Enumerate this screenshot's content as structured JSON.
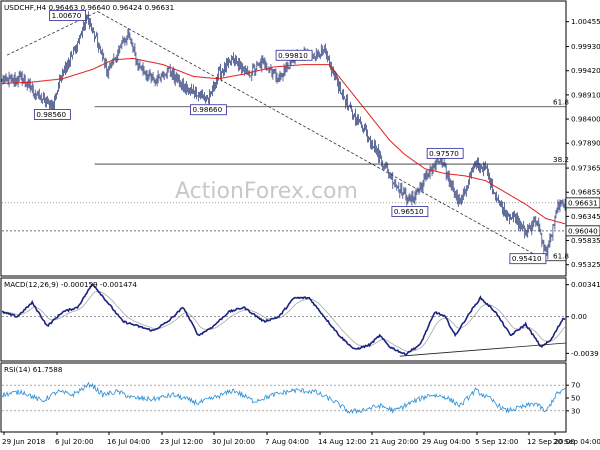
{
  "chart_data": {
    "type": "candlestick",
    "symbol_header": "USDCHF,H4  0.96463 0.96640 0.96424 0.96631",
    "watermark": "ActionForex.com",
    "x_labels": [
      "29 Jun 2018",
      "6 Jul 20:00",
      "16 Jul 04:00",
      "23 Jul 12:00",
      "30 Jul 20:00",
      "7 Aug 04:00",
      "14 Aug 12:00",
      "21 Aug 20:00",
      "29 Aug 04:00",
      "5 Sep 12:00",
      "12 Sep 20:00",
      "20 Sep 04:00"
    ],
    "main": {
      "y_min": 0.9515,
      "y_max": 1.0085,
      "y_ticks": [
        "1.00455",
        "0.99930",
        "0.99420",
        "0.98910",
        "0.98400",
        "0.97890",
        "0.97365",
        "0.96855",
        "0.96345",
        "0.95835",
        "0.95325"
      ],
      "current_price": 0.96631,
      "current_label": "0.96631",
      "level_price": 0.9604,
      "level_label": "0.96040",
      "fib_levels": [
        {
          "label": "61.8",
          "price": 0.9866
        },
        {
          "label": "38.2",
          "price": 0.9745
        },
        {
          "label": "61.8",
          "price": 0.9541
        }
      ],
      "annotations": [
        {
          "label": "1.00670",
          "idx": 85,
          "price": 1.0067
        },
        {
          "label": "0.98560",
          "idx": 50,
          "price": 0.9856
        },
        {
          "label": "0.98660",
          "idx": 205,
          "price": 0.9866
        },
        {
          "label": "0.99810",
          "idx": 290,
          "price": 0.9981
        },
        {
          "label": "0.97570",
          "idx": 440,
          "price": 0.9757
        },
        {
          "label": "0.96510",
          "idx": 405,
          "price": 0.9651
        },
        {
          "label": "0.95410",
          "idx": 542,
          "price": 0.9541
        }
      ],
      "close_anchors": [
        [
          0,
          0.992
        ],
        [
          20,
          0.9925
        ],
        [
          35,
          0.989
        ],
        [
          50,
          0.9865
        ],
        [
          60,
          0.994
        ],
        [
          70,
          0.9975
        ],
        [
          85,
          1.0055
        ],
        [
          95,
          1.0
        ],
        [
          105,
          0.994
        ],
        [
          115,
          0.998
        ],
        [
          125,
          1.002
        ],
        [
          135,
          0.9955
        ],
        [
          150,
          0.992
        ],
        [
          165,
          0.9945
        ],
        [
          180,
          0.9905
        ],
        [
          195,
          0.9895
        ],
        [
          205,
          0.988
        ],
        [
          215,
          0.9935
        ],
        [
          230,
          0.9965
        ],
        [
          245,
          0.9935
        ],
        [
          260,
          0.996
        ],
        [
          275,
          0.9925
        ],
        [
          290,
          0.997
        ],
        [
          305,
          0.9975
        ],
        [
          320,
          0.998
        ],
        [
          330,
          0.993
        ],
        [
          345,
          0.986
        ],
        [
          360,
          0.982
        ],
        [
          375,
          0.976
        ],
        [
          390,
          0.9705
        ],
        [
          405,
          0.9665
        ],
        [
          415,
          0.9695
        ],
        [
          425,
          0.973
        ],
        [
          435,
          0.9755
        ],
        [
          445,
          0.9705
        ],
        [
          455,
          0.9665
        ],
        [
          470,
          0.9745
        ],
        [
          480,
          0.9735
        ],
        [
          490,
          0.968
        ],
        [
          500,
          0.964
        ],
        [
          510,
          0.963
        ],
        [
          520,
          0.96
        ],
        [
          530,
          0.963
        ],
        [
          540,
          0.9555
        ],
        [
          545,
          0.959
        ],
        [
          552,
          0.9655
        ],
        [
          557,
          0.9663
        ]
      ],
      "ma_anchors": [
        [
          0,
          0.9915
        ],
        [
          30,
          0.9918
        ],
        [
          60,
          0.9925
        ],
        [
          90,
          0.9945
        ],
        [
          110,
          0.9965
        ],
        [
          130,
          0.9968
        ],
        [
          160,
          0.9955
        ],
        [
          190,
          0.993
        ],
        [
          215,
          0.9925
        ],
        [
          240,
          0.9935
        ],
        [
          270,
          0.995
        ],
        [
          300,
          0.9955
        ],
        [
          325,
          0.9955
        ],
        [
          340,
          0.9915
        ],
        [
          355,
          0.9875
        ],
        [
          370,
          0.9835
        ],
        [
          385,
          0.9795
        ],
        [
          400,
          0.9765
        ],
        [
          420,
          0.9735
        ],
        [
          440,
          0.9725
        ],
        [
          460,
          0.972
        ],
        [
          480,
          0.971
        ],
        [
          500,
          0.9685
        ],
        [
          520,
          0.966
        ],
        [
          540,
          0.963
        ],
        [
          557,
          0.962
        ]
      ],
      "trendlines": [
        {
          "from": [
            5,
            0.9975
          ],
          "to": [
            95,
            1.0067
          ],
          "style": "dashed"
        },
        {
          "from": [
            95,
            1.0067
          ],
          "to": [
            540,
            0.9541
          ],
          "style": "dashed"
        }
      ]
    },
    "macd": {
      "header": "MACD(12,26,9) -0.000159 -0.001474",
      "y_min": -0.0045,
      "y_max": 0.0038,
      "y_ticks": [
        "0.003412",
        "0.00",
        "-0.0039"
      ],
      "zero_label": "0.00",
      "anchors": [
        [
          0,
          0.0005
        ],
        [
          15,
          0.0
        ],
        [
          30,
          0.0015
        ],
        [
          45,
          -0.001
        ],
        [
          60,
          0.0005
        ],
        [
          75,
          0.001
        ],
        [
          90,
          0.0035
        ],
        [
          105,
          0.0015
        ],
        [
          120,
          -0.0005
        ],
        [
          135,
          -0.001
        ],
        [
          150,
          -0.0015
        ],
        [
          165,
          -0.0005
        ],
        [
          180,
          0.001
        ],
        [
          195,
          -0.002
        ],
        [
          210,
          -0.001
        ],
        [
          225,
          0.0005
        ],
        [
          240,
          0.001
        ],
        [
          260,
          -0.0005
        ],
        [
          275,
          0.0
        ],
        [
          290,
          0.002
        ],
        [
          305,
          0.002
        ],
        [
          320,
          0.0
        ],
        [
          335,
          -0.002
        ],
        [
          350,
          -0.0035
        ],
        [
          365,
          -0.003
        ],
        [
          375,
          -0.002
        ],
        [
          385,
          -0.0032
        ],
        [
          400,
          -0.004
        ],
        [
          415,
          -0.003
        ],
        [
          430,
          0.0005
        ],
        [
          440,
          0.0
        ],
        [
          450,
          -0.002
        ],
        [
          465,
          0.0005
        ],
        [
          475,
          0.002
        ],
        [
          490,
          0.0005
        ],
        [
          505,
          -0.002
        ],
        [
          520,
          -0.0008
        ],
        [
          535,
          -0.0032
        ],
        [
          545,
          -0.0025
        ],
        [
          557,
          -0.0002
        ]
      ],
      "trendline": {
        "from": [
          395,
          -0.0042
        ],
        "to": [
          560,
          -0.0028
        ]
      }
    },
    "rsi": {
      "header": "RSI(14) 61.7588",
      "y_min": 0,
      "y_max": 100,
      "y_ticks": [
        "70",
        "50",
        "30"
      ],
      "anchors": [
        [
          0,
          55
        ],
        [
          20,
          60
        ],
        [
          40,
          45
        ],
        [
          55,
          60
        ],
        [
          70,
          55
        ],
        [
          88,
          72
        ],
        [
          100,
          55
        ],
        [
          115,
          60
        ],
        [
          130,
          50
        ],
        [
          150,
          48
        ],
        [
          170,
          55
        ],
        [
          195,
          42
        ],
        [
          210,
          50
        ],
        [
          230,
          62
        ],
        [
          250,
          45
        ],
        [
          270,
          55
        ],
        [
          290,
          62
        ],
        [
          310,
          60
        ],
        [
          330,
          45
        ],
        [
          345,
          28
        ],
        [
          360,
          32
        ],
        [
          375,
          38
        ],
        [
          390,
          30
        ],
        [
          405,
          42
        ],
        [
          425,
          55
        ],
        [
          440,
          52
        ],
        [
          455,
          38
        ],
        [
          470,
          62
        ],
        [
          485,
          48
        ],
        [
          500,
          30
        ],
        [
          515,
          35
        ],
        [
          530,
          42
        ],
        [
          540,
          28
        ],
        [
          550,
          55
        ],
        [
          557,
          62
        ]
      ]
    }
  }
}
